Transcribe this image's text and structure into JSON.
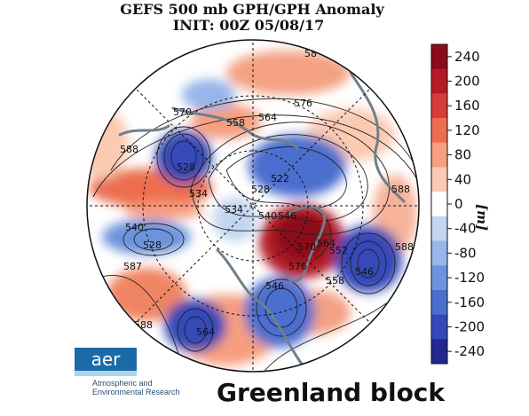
{
  "title": "GEFS 500 mb GPH/GPH Anomaly",
  "init": "INIT: 00Z 05/08/17",
  "caption": "Greenland block",
  "logo": {
    "name": "aer",
    "line1": "Atmospheric and",
    "line2": "Environmental Research"
  },
  "colorbar": {
    "unit": "[m]",
    "ticks": [
      "240",
      "200",
      "160",
      "120",
      "80",
      "40",
      "0",
      "-40",
      "-80",
      "-120",
      "-160",
      "-200",
      "-240"
    ],
    "colors": [
      "#8b0a1c",
      "#b31b27",
      "#d63d38",
      "#ec6e4f",
      "#f79e7f",
      "#fbcab2",
      "#ffffff",
      "#c2d5f1",
      "#97b6ea",
      "#6d93dd",
      "#4b6ecf",
      "#3449b8",
      "#22288f"
    ]
  },
  "contour_labels": {
    "l576": "576",
    "l570": "570",
    "l558": "558",
    "l564": "564",
    "l588a": "588",
    "l528a": "528",
    "l534a": "534",
    "l528b": "528",
    "l522": "522",
    "l540a": "540",
    "l546a": "546",
    "l528c": "528",
    "l534b": "534",
    "l540b": "540",
    "l570b": "570",
    "l564b": "564",
    "l552": "552",
    "l546b": "546",
    "l558b": "558",
    "l588b": "588",
    "l588c": "588",
    "l587": "587",
    "l588d": "588",
    "l564c": "564",
    "l546c": "546",
    "l576b": "576",
    "l58x": "58"
  }
}
